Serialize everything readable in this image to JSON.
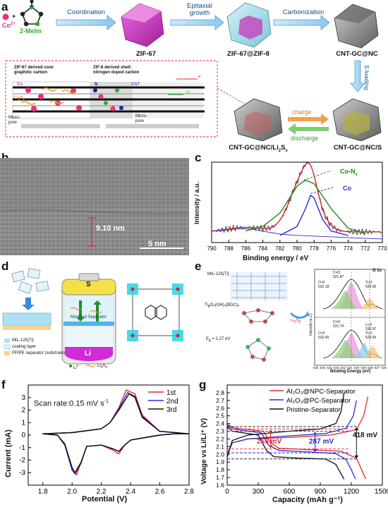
{
  "panels": {
    "a": {
      "label": "a",
      "co_label": "Co",
      "co_sup": "2+",
      "plus": "+",
      "ligand": "2-MeIm",
      "steps": [
        "Coordination",
        "Epitaxial growth",
        "Carbonization"
      ],
      "s_loading": "S loading",
      "nodes": [
        "ZIF-67",
        "ZIF-67@ZIF-8",
        "CNT-GC@NC",
        "CNT-GC@NC/S"
      ],
      "left_node": "CNT-GC@NC/Li",
      "left_node_sub": "2",
      "left_node_tail": "S",
      "left_node_sub2": "x",
      "charge": "charge",
      "discharge": "discharge",
      "inset": {
        "core_title1": "ZIF-67 derived core:",
        "core_title2": "graphitic carbon",
        "shell_title1": "ZIF-8 derived shell:",
        "shell_title2": "nitrogen doped carbon",
        "e_minus": "e",
        "co": "Co",
        "n": "N",
        "cnt": "CNT",
        "li": "Li",
        "li2sx": "Li",
        "li2sx_sub": "2",
        "li2sx_tail": "S",
        "li2sx_sub2": "x",
        "mesopore1": "Meso-",
        "mesopore2": "pore",
        "micropore1": "Micro-",
        "micropore2": "pore"
      }
    },
    "b": {
      "label": "b",
      "measure": "9.10 nm",
      "scale": "5 nm"
    },
    "c": {
      "label": "c",
      "ylabel": "Intensity / a.u.",
      "xlabel": "Binding energy / eV",
      "annot1": "Co-N",
      "annot1_sub": "x",
      "annot2": "Co",
      "ticks": [
        "790",
        "788",
        "786",
        "784",
        "782",
        "780",
        "778",
        "776",
        "774",
        "772",
        "770"
      ]
    },
    "d": {
      "label": "d",
      "s_label": "S",
      "li_label": "Li",
      "sep_label1": "Modified Separator",
      "legend": [
        "MIL-125(Ti)",
        "coating layer",
        "PP/PE separator (substrate)"
      ],
      "ion_legend1": "Li",
      "ion_legend2": "Li",
      "ion_legend2_sub": "2",
      "ion_legend2_tail": "S",
      "ion_legend2_sub2": "x"
    },
    "e": {
      "label": "e",
      "struct1": "MIL-125(Ti)",
      "struct2": "Ti",
      "struct2_rest": "O₈(OH)₄(BDC)₆",
      "struct3": "E",
      "struct3_rest": " = 2.27 eV",
      "o1s": "O 1s",
      "li2s6": "Li",
      "li2s6_sub": "2",
      "li2s6_tail": "S",
      "li2s6_sub2": "6",
      "ylabel": "Intensity (a.u.)",
      "xlabel": "Binding Energy (eV)",
      "top_peaks": [
        "C=O",
        "531.87",
        "O-H",
        "532.18",
        "Ti-O",
        "529.65"
      ],
      "bot_peaks": [
        "C=O",
        "531.74",
        "O-H",
        "532.40",
        "Li-O",
        "530.97",
        "Ti-O",
        "529.95"
      ],
      "ticks": [
        "536",
        "535",
        "534",
        "533",
        "532",
        "531",
        "530",
        "529",
        "528",
        "527",
        "526"
      ]
    },
    "f": {
      "label": "f",
      "scan_rate": "Scan rate:0.15 mV s",
      "scan_sup": "-1",
      "ylabel": "Current (mA)",
      "xlabel": "Potential (V)",
      "legend": [
        "1st",
        "2nd",
        "3rd"
      ]
    },
    "g": {
      "label": "g",
      "legend": [
        "Al₂O₃@NPC-Separator",
        "Al₂O₃@PC-Separator",
        "Pristine-Separator"
      ],
      "ylabel": "Voltage vs Li/Li⁺ (V)",
      "xlabel": "Capacity (mAh g⁻¹)",
      "gap1": "255 mV",
      "gap2": "287 mV",
      "gap3": "418 mV"
    }
  },
  "chart_data": [
    {
      "type": "line",
      "panel": "c",
      "xlabel": "Binding energy / eV",
      "ylabel": "Intensity / a.u.",
      "xlim": [
        790,
        770
      ],
      "x_ticks": [
        790,
        788,
        786,
        784,
        782,
        780,
        778,
        776,
        774,
        772,
        770
      ],
      "series": [
        {
          "name": "Co-N",
          "points": [
            [
              786,
              0.05
            ],
            [
              784,
              0.1
            ],
            [
              782,
              0.25
            ],
            [
              780,
              0.55
            ],
            [
              779,
              0.62
            ],
            [
              778,
              0.58
            ],
            [
              776,
              0.3
            ],
            [
              774,
              0.08
            ],
            [
              772,
              0.02
            ]
          ]
        },
        {
          "name": "Co",
          "points": [
            [
              782,
              0.0
            ],
            [
              780,
              0.1
            ],
            [
              779,
              0.3
            ],
            [
              778.4,
              0.45
            ],
            [
              778,
              0.42
            ],
            [
              777,
              0.18
            ],
            [
              776,
              0.05
            ],
            [
              774,
              0.0
            ]
          ]
        }
      ]
    },
    {
      "type": "line",
      "panel": "f",
      "xlabel": "Potential (V)",
      "ylabel": "Current (mA)",
      "xlim": [
        1.7,
        2.8
      ],
      "ylim": [
        -4,
        4
      ],
      "x_ticks": [
        1.8,
        2.0,
        2.2,
        2.4,
        2.6,
        2.8
      ],
      "y_ticks": [
        -3,
        -2,
        -1,
        0,
        1,
        2,
        3
      ],
      "series": [
        {
          "name": "1st",
          "color": "#e8262b",
          "points": [
            [
              1.8,
              0.1
            ],
            [
              1.9,
              0.0
            ],
            [
              1.95,
              -0.8
            ],
            [
              2.0,
              -2.6
            ],
            [
              2.03,
              -3.2
            ],
            [
              2.06,
              -2.2
            ],
            [
              2.1,
              -0.9
            ],
            [
              2.2,
              -0.8
            ],
            [
              2.28,
              -1.2
            ],
            [
              2.32,
              -1.5
            ],
            [
              2.36,
              -0.8
            ],
            [
              2.4,
              -0.4
            ],
            [
              2.5,
              -0.2
            ],
            [
              2.6,
              0.0
            ],
            [
              2.7,
              0.1
            ],
            [
              2.8,
              0.1
            ],
            [
              2.6,
              0.3
            ],
            [
              2.48,
              1.6
            ],
            [
              2.43,
              3.3
            ],
            [
              2.37,
              3.6
            ],
            [
              2.32,
              2.2
            ],
            [
              2.26,
              1.0
            ],
            [
              2.2,
              0.5
            ],
            [
              2.0,
              0.2
            ],
            [
              1.8,
              0.1
            ]
          ]
        },
        {
          "name": "2nd",
          "color": "#2b2bd6",
          "points": [
            [
              1.8,
              0.1
            ],
            [
              1.9,
              0.0
            ],
            [
              1.95,
              -0.8
            ],
            [
              2.0,
              -2.8
            ],
            [
              2.02,
              -3.1
            ],
            [
              2.06,
              -2.3
            ],
            [
              2.1,
              -0.9
            ],
            [
              2.2,
              -0.8
            ],
            [
              2.28,
              -1.1
            ],
            [
              2.32,
              -1.3
            ],
            [
              2.36,
              -0.8
            ],
            [
              2.4,
              -0.4
            ],
            [
              2.5,
              -0.2
            ],
            [
              2.6,
              0.0
            ],
            [
              2.7,
              0.1
            ],
            [
              2.8,
              0.1
            ],
            [
              2.6,
              0.3
            ],
            [
              2.48,
              1.5
            ],
            [
              2.43,
              3.1
            ],
            [
              2.38,
              3.4
            ],
            [
              2.32,
              2.1
            ],
            [
              2.26,
              1.0
            ],
            [
              2.2,
              0.5
            ],
            [
              2.0,
              0.2
            ],
            [
              1.8,
              0.1
            ]
          ]
        },
        {
          "name": "3rd",
          "color": "#111111",
          "points": [
            [
              1.8,
              0.1
            ],
            [
              1.9,
              0.0
            ],
            [
              1.95,
              -0.7
            ],
            [
              2.0,
              -2.6
            ],
            [
              2.02,
              -3.0
            ],
            [
              2.06,
              -2.2
            ],
            [
              2.1,
              -0.9
            ],
            [
              2.2,
              -0.8
            ],
            [
              2.28,
              -1.1
            ],
            [
              2.32,
              -1.3
            ],
            [
              2.36,
              -0.8
            ],
            [
              2.4,
              -0.4
            ],
            [
              2.5,
              -0.2
            ],
            [
              2.6,
              0.0
            ],
            [
              2.7,
              0.1
            ],
            [
              2.8,
              0.1
            ],
            [
              2.6,
              0.3
            ],
            [
              2.48,
              1.4
            ],
            [
              2.43,
              3.0
            ],
            [
              2.39,
              3.3
            ],
            [
              2.32,
              2.0
            ],
            [
              2.26,
              1.0
            ],
            [
              2.2,
              0.5
            ],
            [
              2.0,
              0.2
            ],
            [
              1.8,
              0.1
            ]
          ]
        }
      ]
    },
    {
      "type": "line",
      "panel": "g",
      "xlabel": "Capacity (mAh g⁻¹)",
      "ylabel": "Voltage vs Li/Li⁺ (V)",
      "xlim": [
        0,
        1500
      ],
      "ylim": [
        1.6,
        2.9
      ],
      "x_ticks": [
        0,
        300,
        600,
        900,
        1200,
        1500
      ],
      "y_ticks": [
        1.6,
        1.7,
        1.8,
        1.9,
        2.0,
        2.1,
        2.2,
        2.3,
        2.4,
        2.5,
        2.6,
        2.7,
        2.8
      ],
      "series": [
        {
          "name": "Al₂O₃@NPC-Separator",
          "color": "#e8262b",
          "points": [
            [
              0,
              2.4
            ],
            [
              50,
              2.35
            ],
            [
              200,
              2.32
            ],
            [
              350,
              2.3
            ],
            [
              420,
              2.15
            ],
            [
              500,
              2.08
            ],
            [
              800,
              2.06
            ],
            [
              1100,
              2.04
            ],
            [
              1250,
              1.95
            ],
            [
              1300,
              1.8
            ],
            [
              1340,
              1.68
            ]
          ],
          "charge": [
            [
              0,
              2.0
            ],
            [
              50,
              2.15
            ],
            [
              200,
              2.2
            ],
            [
              600,
              2.22
            ],
            [
              1000,
              2.25
            ],
            [
              1250,
              2.32
            ],
            [
              1320,
              2.5
            ],
            [
              1360,
              2.75
            ]
          ]
        },
        {
          "name": "Al₂O₃@PC-Separator",
          "color": "#2b2bd6",
          "points": [
            [
              0,
              2.38
            ],
            [
              50,
              2.33
            ],
            [
              200,
              2.3
            ],
            [
              330,
              2.28
            ],
            [
              400,
              2.12
            ],
            [
              500,
              2.05
            ],
            [
              800,
              2.03
            ],
            [
              1050,
              2.01
            ],
            [
              1150,
              1.93
            ],
            [
              1200,
              1.8
            ],
            [
              1240,
              1.68
            ]
          ],
          "charge": [
            [
              0,
              1.98
            ],
            [
              50,
              2.15
            ],
            [
              200,
              2.2
            ],
            [
              600,
              2.24
            ],
            [
              950,
              2.27
            ],
            [
              1150,
              2.34
            ],
            [
              1220,
              2.5
            ],
            [
              1250,
              2.7
            ]
          ]
        },
        {
          "name": "Pristine-Separator",
          "color": "#111111",
          "points": [
            [
              0,
              2.36
            ],
            [
              50,
              2.3
            ],
            [
              200,
              2.27
            ],
            [
              300,
              2.25
            ],
            [
              380,
              2.05
            ],
            [
              450,
              1.97
            ],
            [
              700,
              1.95
            ],
            [
              950,
              1.94
            ],
            [
              1050,
              1.87
            ],
            [
              1100,
              1.75
            ],
            [
              1130,
              1.68
            ]
          ],
          "charge": [
            [
              0,
              1.96
            ],
            [
              50,
              2.18
            ],
            [
              200,
              2.25
            ],
            [
              600,
              2.3
            ],
            [
              900,
              2.33
            ],
            [
              1050,
              2.4
            ],
            [
              1100,
              2.55
            ],
            [
              1130,
              2.8
            ]
          ]
        }
      ]
    }
  ]
}
